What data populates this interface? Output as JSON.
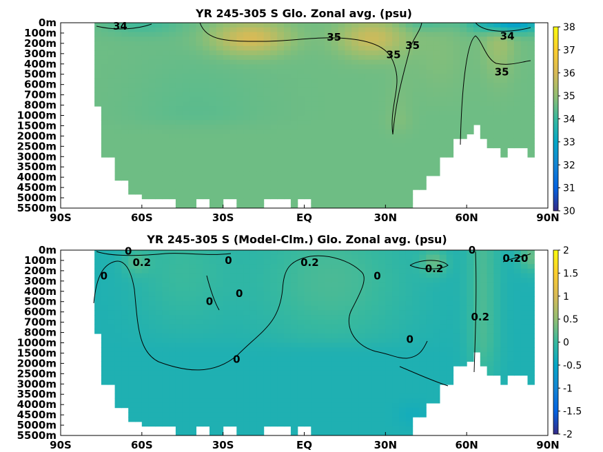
{
  "chart_data": [
    {
      "type": "heatmap",
      "title": "YR 245-305 S Glo. Zonal avg. (psu)",
      "x_tick_labels": [
        "90S",
        "60S",
        "30S",
        "EQ",
        "30N",
        "60N",
        "90N"
      ],
      "x_ticks": [
        -90,
        -60,
        -30,
        0,
        30,
        60,
        90
      ],
      "xlim": [
        -90,
        90
      ],
      "y_tick_labels": [
        "0m",
        "100m",
        "200m",
        "300m",
        "400m",
        "500m",
        "600m",
        "700m",
        "800m",
        "1000m",
        "1500m",
        "2000m",
        "2500m",
        "3000m",
        "3500m",
        "4000m",
        "4500m",
        "5000m",
        "5500m"
      ],
      "y_ticks": [
        0,
        100,
        200,
        300,
        400,
        500,
        600,
        700,
        800,
        1000,
        1500,
        2000,
        2500,
        3000,
        3500,
        4000,
        4500,
        5000,
        5500
      ],
      "ylim": [
        0,
        5500
      ],
      "y_reversed": true,
      "colorbar": {
        "range": [
          30,
          38
        ],
        "tick_labels": [
          "30",
          "31",
          "32",
          "33",
          "34",
          "35",
          "36",
          "37",
          "38"
        ],
        "colormap": "parula"
      },
      "contour_labels": [
        {
          "text": "34",
          "lat": -68,
          "depth": 35
        },
        {
          "text": "35",
          "lat": 11,
          "depth": 140
        },
        {
          "text": "35",
          "lat": 33,
          "depth": 310
        },
        {
          "text": "35",
          "lat": 40,
          "depth": 220
        },
        {
          "text": "34",
          "lat": 75,
          "depth": 130
        },
        {
          "text": "35",
          "lat": 73,
          "depth": 480
        }
      ],
      "fields": {
        "background": 34.6,
        "features": [
          {
            "lat": -20,
            "depth": 150,
            "amp": 1.4,
            "slat": 14,
            "sdep": 160
          },
          {
            "lat": 25,
            "depth": 150,
            "amp": 1.2,
            "slat": 12,
            "sdep": 180
          },
          {
            "lat": 50,
            "depth": 300,
            "amp": 0.2,
            "slat": 10,
            "sdep": 400
          },
          {
            "lat": 72,
            "depth": 120,
            "amp": 0.6,
            "slat": 6,
            "sdep": 400
          },
          {
            "lat": 75,
            "depth": 0,
            "amp": -2.2,
            "slat": 12,
            "sdep": 100
          },
          {
            "lat": -60,
            "depth": 0,
            "amp": -0.5,
            "slat": 15,
            "sdep": 120
          },
          {
            "lat": 45,
            "depth": 0,
            "amp": -0.5,
            "slat": 10,
            "sdep": 80
          },
          {
            "lat": -40,
            "depth": 900,
            "amp": -0.2,
            "slat": 25,
            "sdep": 600
          },
          {
            "lat": 35,
            "depth": 1200,
            "amp": 0.2,
            "slat": 5,
            "sdep": 700
          }
        ]
      }
    },
    {
      "type": "heatmap",
      "title": "YR 245-305 S (Model-Clm.) Glo. Zonal avg. (psu)",
      "x_tick_labels": [
        "90S",
        "60S",
        "30S",
        "EQ",
        "30N",
        "60N",
        "90N"
      ],
      "x_ticks": [
        -90,
        -60,
        -30,
        0,
        30,
        60,
        90
      ],
      "xlim": [
        -90,
        90
      ],
      "y_tick_labels": [
        "0m",
        "100m",
        "200m",
        "300m",
        "400m",
        "500m",
        "600m",
        "700m",
        "800m",
        "1000m",
        "1500m",
        "2000m",
        "2500m",
        "3000m",
        "3500m",
        "4000m",
        "4500m",
        "5000m",
        "5500m"
      ],
      "y_ticks": [
        0,
        100,
        200,
        300,
        400,
        500,
        600,
        700,
        800,
        1000,
        1500,
        2000,
        2500,
        3000,
        3500,
        4000,
        4500,
        5000,
        5500
      ],
      "ylim": [
        0,
        5500
      ],
      "y_reversed": true,
      "colorbar": {
        "range": [
          -2,
          2
        ],
        "tick_labels": [
          "-2",
          "-1.5",
          "-1",
          "-0.5",
          "0",
          "0.5",
          "1",
          "1.5",
          "2"
        ],
        "colormap": "parula"
      },
      "contour_labels": [
        {
          "text": "0",
          "lat": -65,
          "depth": 10
        },
        {
          "text": "0.2",
          "lat": -60,
          "depth": 120
        },
        {
          "text": "0",
          "lat": -74,
          "depth": 250
        },
        {
          "text": "0",
          "lat": -28,
          "depth": 100
        },
        {
          "text": "0",
          "lat": -35,
          "depth": 500
        },
        {
          "text": "0",
          "lat": -24,
          "depth": 420
        },
        {
          "text": "0.2",
          "lat": 2,
          "depth": 120
        },
        {
          "text": "0",
          "lat": 27,
          "depth": 250
        },
        {
          "text": "0.2",
          "lat": 48,
          "depth": 180
        },
        {
          "text": "0",
          "lat": 62,
          "depth": 0
        },
        {
          "text": "0.20",
          "lat": 78,
          "depth": 80
        },
        {
          "text": "0.2",
          "lat": 65,
          "depth": 650
        },
        {
          "text": "0",
          "lat": 39,
          "depth": 930
        },
        {
          "text": "0",
          "lat": -25,
          "depth": 1800
        }
      ],
      "fields": {
        "background": -0.25,
        "features": [
          {
            "lat": 10,
            "depth": 300,
            "amp": 0.35,
            "slat": 30,
            "sdep": 700
          },
          {
            "lat": -45,
            "depth": 200,
            "amp": 0.25,
            "slat": 18,
            "sdep": 600
          },
          {
            "lat": 66,
            "depth": 600,
            "amp": 0.35,
            "slat": 6,
            "sdep": 2500
          },
          {
            "lat": 48,
            "depth": 120,
            "amp": 0.45,
            "slat": 5,
            "sdep": 120
          },
          {
            "lat": 84,
            "depth": 60,
            "amp": 0.5,
            "slat": 5,
            "sdep": 150
          },
          {
            "lat": -62,
            "depth": 120,
            "amp": 0.3,
            "slat": 5,
            "sdep": 120
          },
          {
            "lat": 40,
            "depth": 4500,
            "amp": -0.1,
            "slat": 6,
            "sdep": 600
          }
        ]
      }
    }
  ]
}
